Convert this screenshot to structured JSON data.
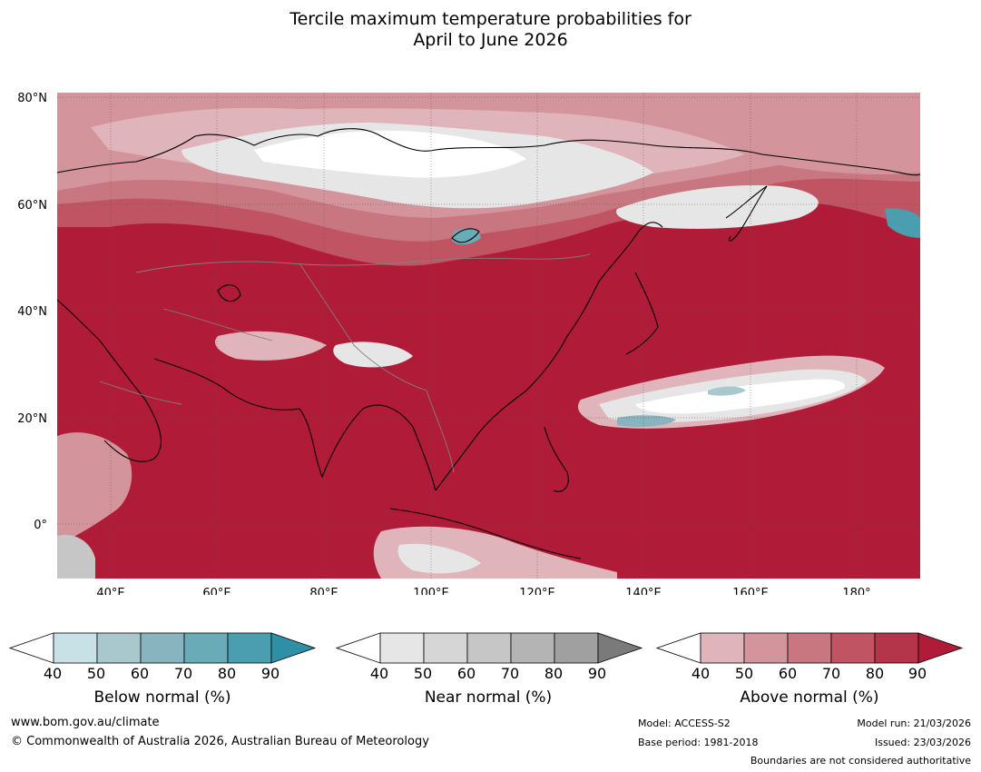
{
  "title": {
    "line1": "Tercile maximum temperature probabilities for",
    "line2": "April to June 2026"
  },
  "map": {
    "lat_labels": [
      "80°N",
      "60°N",
      "40°N",
      "20°N",
      "0°"
    ],
    "lon_labels": [
      "40°E",
      "60°E",
      "80°E",
      "100°E",
      "120°E",
      "140°E",
      "160°E",
      "180°"
    ],
    "lat_range": [
      -10,
      81
    ],
    "lon_range": [
      30,
      192
    ]
  },
  "legends": [
    {
      "title": "Below normal (%)",
      "ticks": [
        "40",
        "50",
        "60",
        "70",
        "80",
        "90"
      ],
      "colors": [
        "#ffffff",
        "#c8e1e6",
        "#a8c8ce",
        "#88b4c0",
        "#6aabb8",
        "#4a9eb0",
        "#2e8fa6"
      ]
    },
    {
      "title": "Near normal (%)",
      "ticks": [
        "40",
        "50",
        "60",
        "70",
        "80",
        "90"
      ],
      "colors": [
        "#ffffff",
        "#e6e6e6",
        "#d6d6d6",
        "#c6c6c6",
        "#b4b4b4",
        "#a0a0a0",
        "#7a7a7a"
      ]
    },
    {
      "title": "Above normal (%)",
      "ticks": [
        "40",
        "50",
        "60",
        "70",
        "80",
        "90"
      ],
      "colors": [
        "#ffffff",
        "#e0b4bb",
        "#d4949c",
        "#c87680",
        "#c05462",
        "#b4344a",
        "#b01c38"
      ]
    }
  ],
  "footer": {
    "website": "www.bom.gov.au/climate",
    "copyright": "© Commonwealth of Australia 2026, Australian Bureau of Meteorology",
    "model": "Model: ACCESS-S2",
    "base_period": "Base period: 1981-2018",
    "model_run": "Model run: 21/03/2026",
    "issued": "Issued: 23/03/2026",
    "disclaimer": "Boundaries are not considered authoritative"
  }
}
